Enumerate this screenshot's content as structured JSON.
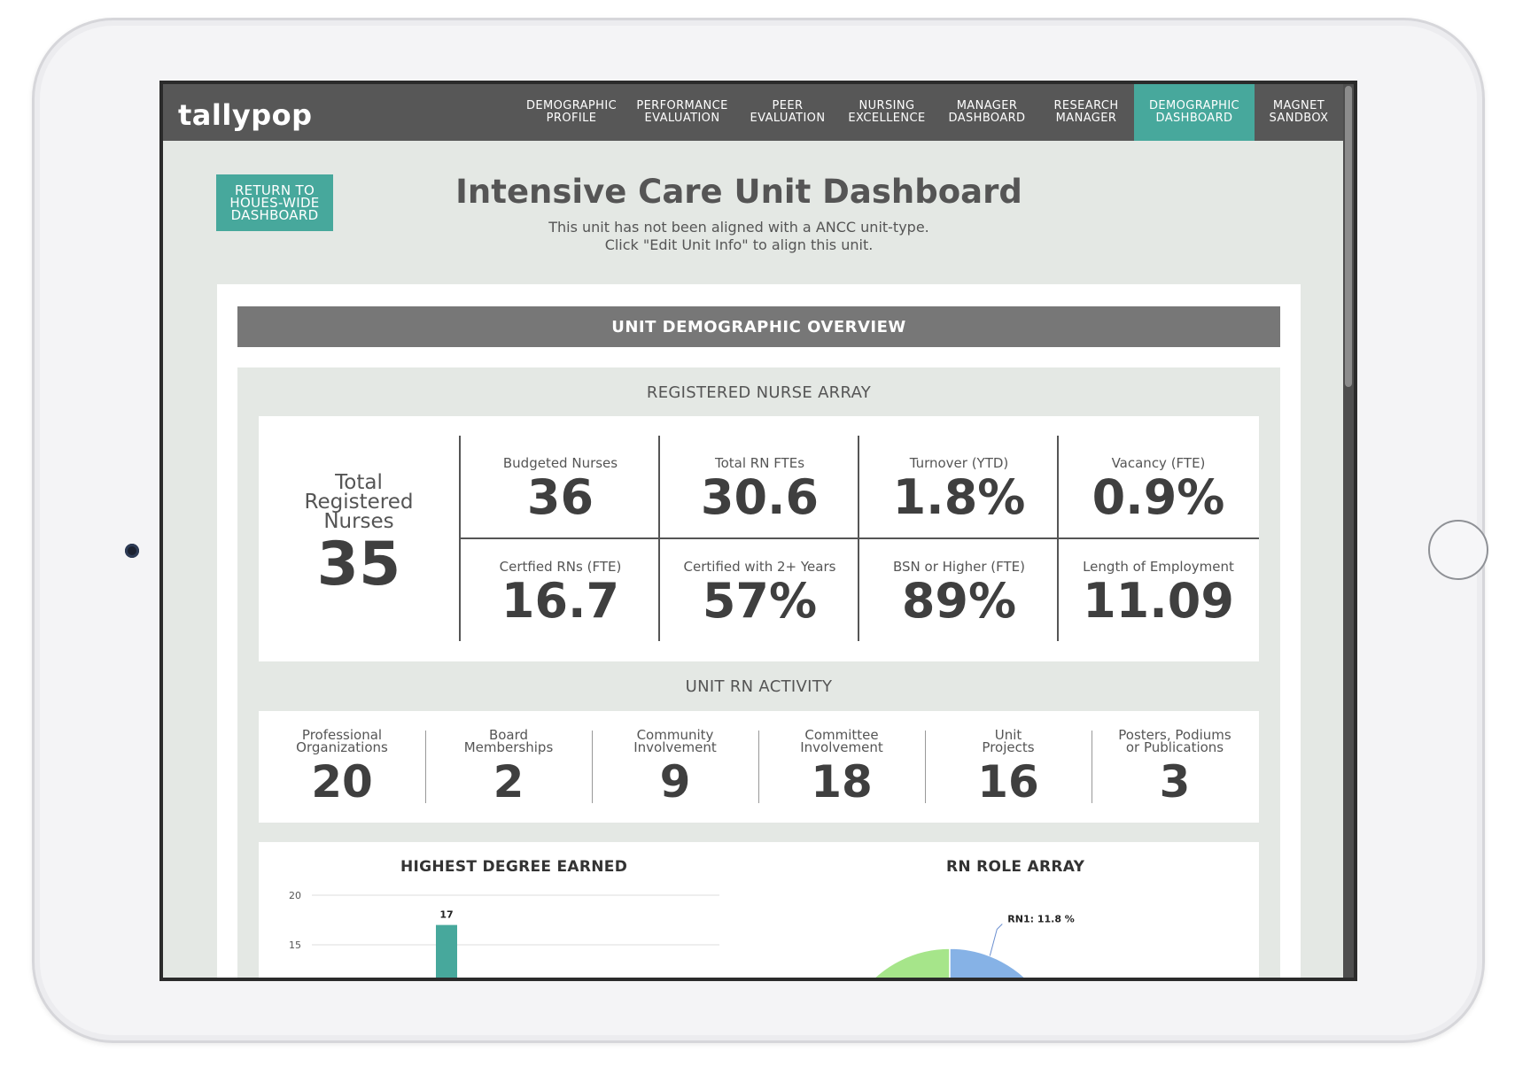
{
  "app": {
    "logo": "tallypop"
  },
  "nav": [
    {
      "label": "DEMOGRAPHIC\nPROFILE",
      "active": false
    },
    {
      "label": "PERFORMANCE\nEVALUATION",
      "active": false
    },
    {
      "label": "PEER\nEVALUATION",
      "active": false
    },
    {
      "label": "NURSING\nEXCELLENCE",
      "active": false
    },
    {
      "label": "MANAGER\nDASHBOARD",
      "active": false
    },
    {
      "label": "RESEARCH\nMANAGER",
      "active": false
    },
    {
      "label": "DEMOGRAPHIC\nDASHBOARD",
      "active": true
    },
    {
      "label": "MAGNET\nSANDBOX",
      "active": false
    }
  ],
  "header": {
    "return_button": "RETURN TO\nHOUES-WIDE\nDASHBOARD",
    "title": "Intensive Care Unit Dashboard",
    "subtitle": "This unit has not been aligned with a ANCC unit-type.\nClick \"Edit Unit Info\" to align this unit."
  },
  "overview": {
    "title": "UNIT DEMOGRAPHIC OVERVIEW",
    "rn_array_title": "REGISTERED NURSE ARRAY",
    "total": {
      "label": "Total\nRegistered\nNurses",
      "value": "35"
    },
    "metrics": [
      {
        "label": "Budgeted Nurses",
        "value": "36"
      },
      {
        "label": "Total RN FTEs",
        "value": "30.6"
      },
      {
        "label": "Turnover (YTD)",
        "value": "1.8%"
      },
      {
        "label": "Vacancy (FTE)",
        "value": "0.9%"
      },
      {
        "label": "Certfied RNs (FTE)",
        "value": "16.7"
      },
      {
        "label": "Certified with 2+ Years",
        "value": "57%"
      },
      {
        "label": "BSN or Higher (FTE)",
        "value": "89%"
      },
      {
        "label": "Length of Employment",
        "value": "11.09"
      }
    ],
    "activity_title": "UNIT RN ACTIVITY",
    "activity": [
      {
        "label": "Professional\nOrganizations",
        "value": "20"
      },
      {
        "label": "Board\nMemberships",
        "value": "2"
      },
      {
        "label": "Community\nInvolvement",
        "value": "9"
      },
      {
        "label": "Committee\nInvolvement",
        "value": "18"
      },
      {
        "label": "Unit\nProjects",
        "value": "16"
      },
      {
        "label": "Posters, Podiums\nor Publications",
        "value": "3"
      }
    ]
  },
  "colors": {
    "accent": "#47a89c",
    "nav_bg": "#575757",
    "pie_green": "#a6e58a",
    "pie_blue": "#86b2e6",
    "pie_dark": "#3a3a3a"
  },
  "chart_data": [
    {
      "type": "bar",
      "title": "HIGHEST DEGREE EARNED",
      "yticks": [
        15,
        20
      ],
      "ylim": [
        0,
        20
      ],
      "values": [
        17
      ],
      "data_labels": [
        "17"
      ],
      "grid": true
    },
    {
      "type": "pie",
      "title": "RN ROLE ARRAY",
      "slices": [
        {
          "label": "RN1: 11.8 %",
          "value": 11.8
        }
      ]
    }
  ]
}
